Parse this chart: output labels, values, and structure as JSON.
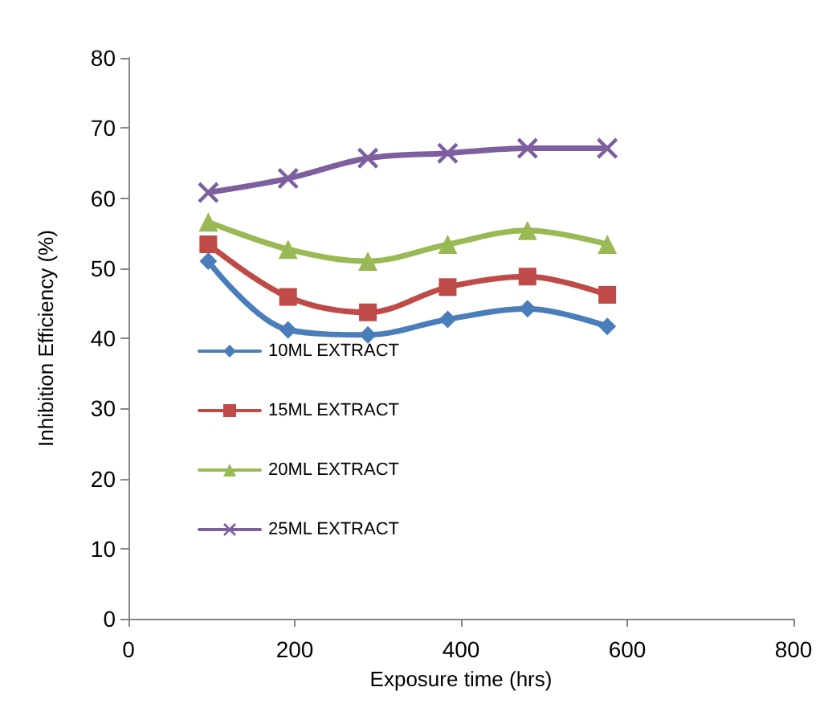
{
  "chart_data": {
    "type": "line",
    "xlabel": "Exposure time (hrs)",
    "ylabel": "Inhibition Efficiency (%)",
    "x": [
      96,
      192,
      288,
      384,
      480,
      576
    ],
    "series": [
      {
        "name": "10ML EXTRACT",
        "color": "#4a7ebb",
        "marker": "diamond",
        "values": [
          51,
          41.2,
          40.5,
          42.7,
          44.2,
          41.7
        ]
      },
      {
        "name": "15ML EXTRACT",
        "color": "#be4b48",
        "marker": "square",
        "values": [
          53.4,
          45.9,
          43.7,
          47.3,
          48.8,
          46.2
        ]
      },
      {
        "name": "20ML EXTRACT",
        "color": "#98b954",
        "marker": "triangle",
        "values": [
          56.6,
          52.7,
          51,
          53.4,
          55.4,
          53.4
        ]
      },
      {
        "name": "25ML EXTRACT",
        "color": "#7d5fa0",
        "marker": "cross",
        "values": [
          60.8,
          62.8,
          65.7,
          66.4,
          67.1,
          67.1
        ]
      }
    ],
    "xlim": [
      0,
      800
    ],
    "xticks": [
      0,
      200,
      400,
      600,
      800
    ],
    "ylim": [
      0,
      80
    ],
    "yticks": [
      0,
      10,
      20,
      30,
      40,
      50,
      60,
      70,
      80
    ],
    "grid": false,
    "legend": "left",
    "line_style": "solid"
  }
}
